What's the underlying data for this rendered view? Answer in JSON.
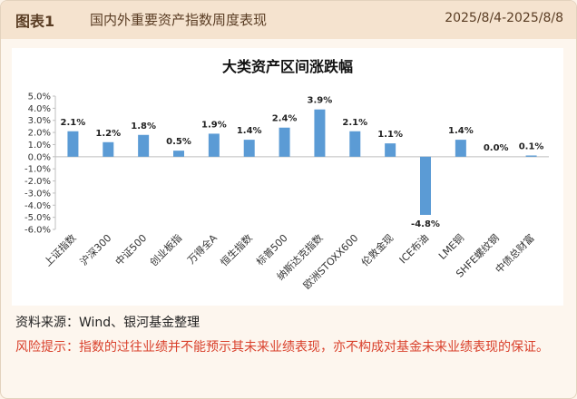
{
  "header": {
    "label": "图表1",
    "title": "国内外重要资产指数周度表现",
    "date_range": "2025/8/4-2025/8/8"
  },
  "chart_data": {
    "type": "bar",
    "title": "大类资产区间涨跌幅",
    "categories": [
      "上证指数",
      "沪深300",
      "中证500",
      "创业板指",
      "万得全A",
      "恒生指数",
      "标普500",
      "纳斯达克指数",
      "欧洲STOXX600",
      "伦敦金现",
      "ICE布油",
      "LME铜",
      "SHFE螺纹钢",
      "中债总财富"
    ],
    "values": [
      2.1,
      1.2,
      1.8,
      0.5,
      1.9,
      1.4,
      2.4,
      3.9,
      2.1,
      1.1,
      -4.8,
      1.4,
      0.0,
      0.1
    ],
    "data_labels": [
      "2.1%",
      "1.2%",
      "1.8%",
      "0.5%",
      "1.9%",
      "1.4%",
      "2.4%",
      "3.9%",
      "2.1%",
      "1.1%",
      "-4.8%",
      "1.4%",
      "0.0%",
      "0.1%"
    ],
    "ylim": [
      -6.0,
      5.0
    ],
    "yticks": [
      5.0,
      4.0,
      3.0,
      2.0,
      1.0,
      0.0,
      -1.0,
      -2.0,
      -3.0,
      -4.0,
      -5.0,
      -6.0
    ],
    "ytick_labels": [
      "5.0%",
      "4.0%",
      "3.0%",
      "2.0%",
      "1.0%",
      "0.0%",
      "-1.0%",
      "-2.0%",
      "-3.0%",
      "-4.0%",
      "-5.0%",
      "-6.0%"
    ],
    "grid": false,
    "bar_color": "#5b9bd5"
  },
  "footer": {
    "source": "资料来源：Wind、银河基金整理",
    "risk": "风险提示：指数的过往业绩并不能预示其未来业绩表现，亦不构成对基金未来业绩表现的保证。"
  }
}
